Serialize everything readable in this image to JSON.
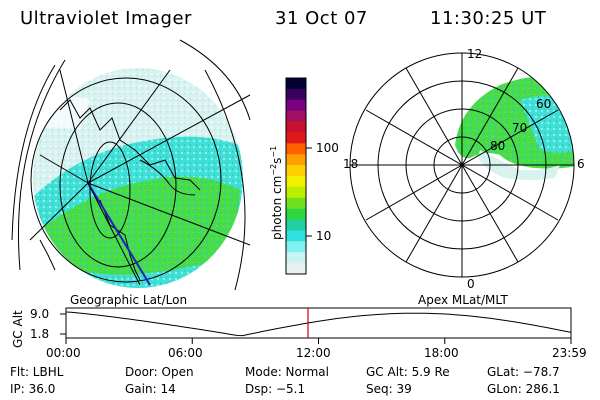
{
  "header": {
    "instrument": "Ultraviolet Imager",
    "date": "31 Oct 07",
    "time": "11:30:25 UT"
  },
  "colorbar": {
    "unit_label": "photon cm",
    "unit_exp1": "−2",
    "unit_mid": "s",
    "unit_exp2": "−1",
    "ticks": [
      "100",
      "10"
    ],
    "colors": [
      "#000033",
      "#3a0060",
      "#7a0080",
      "#a01060",
      "#c81030",
      "#e01818",
      "#ff6000",
      "#ffa000",
      "#ffd000",
      "#f0f000",
      "#b8f000",
      "#70e020",
      "#30d840",
      "#20d0a0",
      "#30e0e0",
      "#80f0f0",
      "#c8f4f4",
      "#e8f0f0"
    ]
  },
  "left_map": {
    "caption": "Geographic Lat/Lon"
  },
  "right_map": {
    "caption": "Apex  MLat/MLT",
    "mlt_labels": {
      "top": "12",
      "left": "18",
      "right": "6",
      "bottom": "0"
    },
    "mlat_labels": [
      "60",
      "70",
      "80"
    ]
  },
  "timeline": {
    "ylabel": "GC Alt",
    "y_ticks": [
      "9.0",
      "1.8"
    ],
    "x_ticks": [
      "00:00",
      "06:00",
      "12:00",
      "18:00",
      "23:59"
    ],
    "marker_time": "11:30"
  },
  "status": {
    "filter": "Flt: LBHL",
    "door": "Door: Open",
    "mode": "Mode: Normal",
    "gc_alt": "GC Alt: 5.9 Re",
    "glat": "GLat: −78.7",
    "ip": "IP: 36.0",
    "gain": "Gain: 14",
    "dsp": "Dsp:    −5.1",
    "seq": "Seq: 39",
    "glon": "GLon: 286.1"
  }
}
